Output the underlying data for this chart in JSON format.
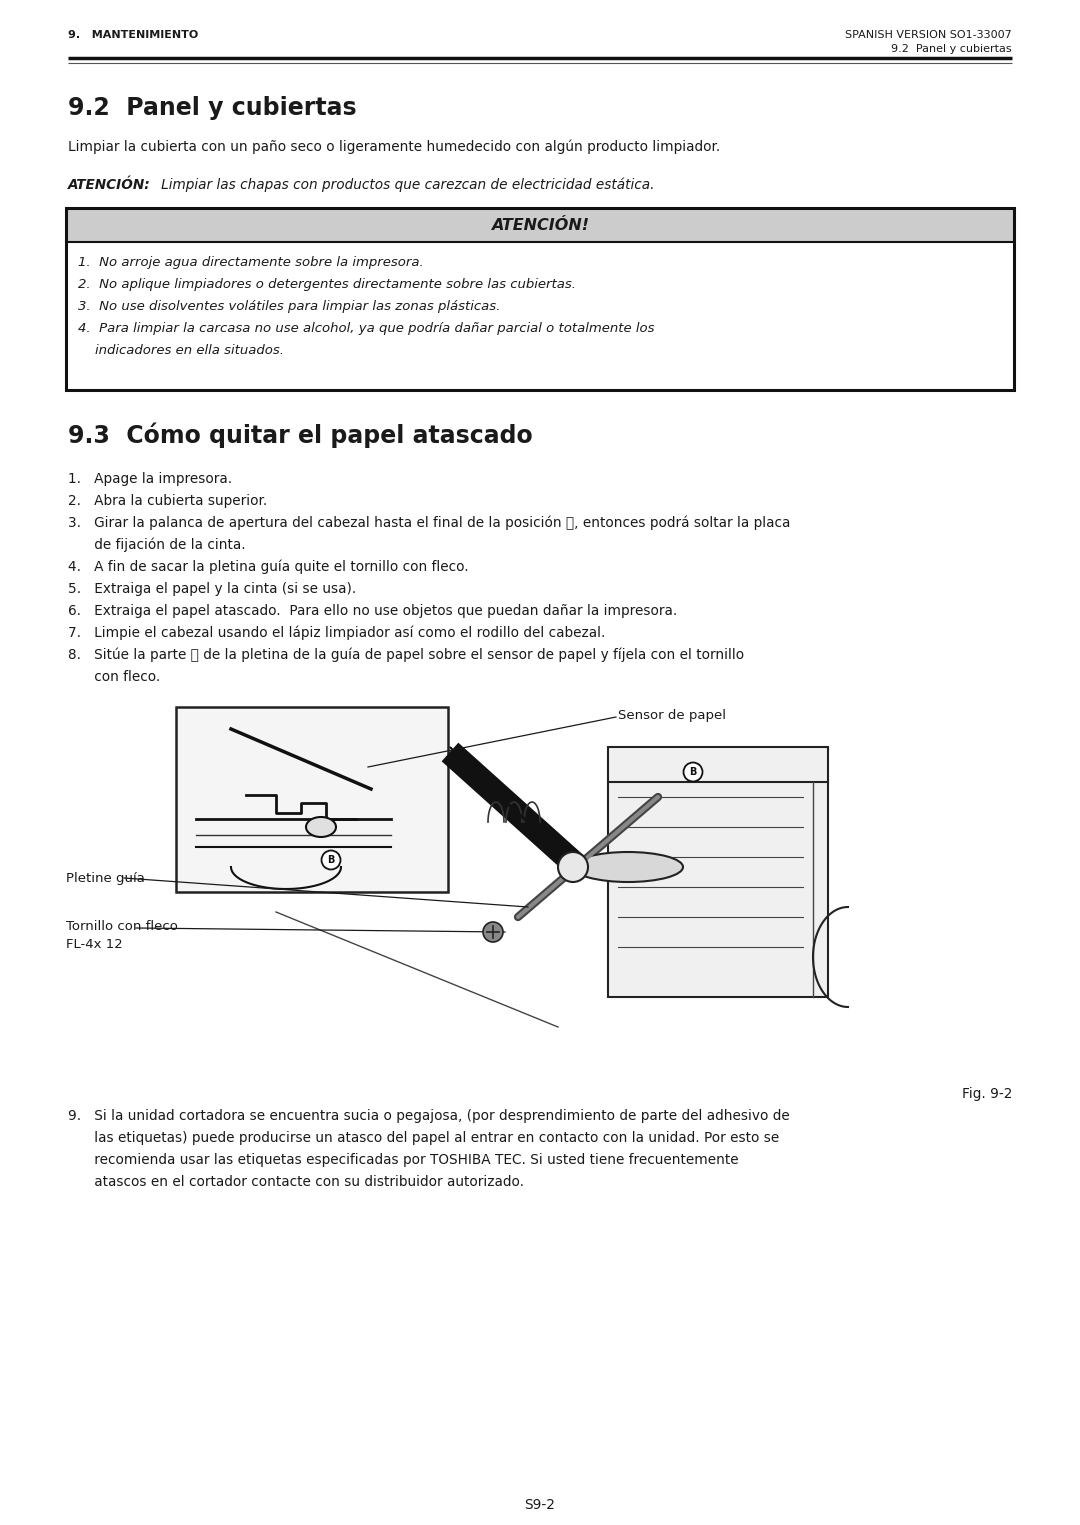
{
  "page_bg": "#ffffff",
  "text_color": "#1a1a1a",
  "header_left": "9.   MANTENIMIENTO",
  "header_right": "SPANISH VERSION SO1-33007",
  "header_sub_right": "9.2  Panel y cubiertas",
  "section1_title": "9.2  Panel y cubiertas",
  "section1_body": "Limpiar la cubierta con un paño seco o ligeramente humedecido con algún producto limpiador.",
  "attention_inline_bold": "ATENCIÓN:",
  "attention_inline_text": "   Limpiar las chapas con productos que carezcan de electricidad estática.",
  "box_title": "ATENCIÓN!",
  "box_bg": "#cccccc",
  "box_border": "#111111",
  "box_items": [
    "1.  No arroje agua directamente sobre la impresora.",
    "2.  No aplique limpiadores o detergentes directamente sobre las cubiertas.",
    "3.  No use disolventes volátiles para limpiar las zonas plásticas.",
    "4.  Para limpiar la carcasa no use alcohol, ya que podría dañar parcial o totalmente los",
    "    indicadores en ella situados."
  ],
  "section2_title": "9.3  Cómo quitar el papel atascado",
  "step1": "1.   Apage la impresora.",
  "step2": "2.   Abra la cubierta superior.",
  "step3a": "3.   Girar la palanca de apertura del cabezal hasta el final de la posición ⓒ, entonces podrá soltar la placa",
  "step3b": "      de fijación de la cinta.",
  "step4": "4.   A fin de sacar la pletina guía quite el tornillo con fleco.",
  "step5": "5.   Extraiga el papel y la cinta (si se usa).",
  "step6": "6.   Extraiga el papel atascado.  Para ello no use objetos que puedan dañar la impresora.",
  "step7": "7.   Limpie el cabezal usando el lápiz limpiador así como el rodillo del cabezal.",
  "step8a": "8.   Sitúe la parte Ⓑ de la pletina de la guía de papel sobre el sensor de papel y fíjela con el tornillo",
  "step8b": "      con fleco.",
  "step9a": "9.   Si la unidad cortadora se encuentra sucia o pegajosa, (por desprendimiento de parte del adhesivo de",
  "step9b": "      las etiquetas) puede producirse un atasco del papel al entrar en contacto con la unidad. Por esto se",
  "step9c": "      recomienda usar las etiquetas especificadas por TOSHIBA TEC. Si usted tiene frecuentemente",
  "step9d": "      atascos en el cortador contacte con su distribuidor autorizado.",
  "label_sensor": "Sensor de papel",
  "label_pletine": "Pletine guía",
  "label_tornillo": "Tornillo con fleco",
  "label_tornillo2": "FL-4x 12",
  "fig_label": "Fig. 9-2",
  "footer": "S9-2"
}
